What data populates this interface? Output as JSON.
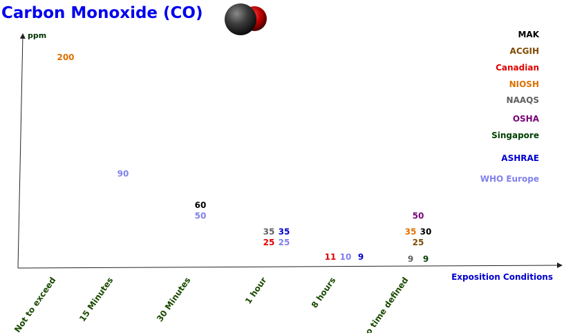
{
  "title": "Carbon Monoxide (CO)",
  "molecule_icon": "carbon-monoxide-molecule-icon",
  "chart_data": {
    "type": "scatter",
    "title": "Carbon Monoxide (CO)",
    "ylabel": "ppm",
    "xlabel": "Exposition Conditions",
    "ylim": [
      0,
      215
    ],
    "categories": [
      "Not to exceed",
      "15 Minutes",
      "30 Minutes",
      "1 hour",
      "8 hours",
      "no time defined"
    ],
    "series": [
      {
        "name": "MAK",
        "color": "#000000",
        "points": [
          {
            "x": "30 Minutes",
            "y": 60
          },
          {
            "x": "no time defined",
            "y": 30
          }
        ]
      },
      {
        "name": "ACGIH",
        "color": "#7f4a00",
        "points": [
          {
            "x": "no time defined",
            "y": 25
          }
        ]
      },
      {
        "name": "Canadian",
        "color": "#e00000",
        "points": [
          {
            "x": "1 hour",
            "y": 25
          },
          {
            "x": "8 hours",
            "y": 11
          }
        ]
      },
      {
        "name": "NIOSH",
        "color": "#e07000",
        "points": [
          {
            "x": "Not to exceed",
            "y": 200
          },
          {
            "x": "no time defined",
            "y": 35
          }
        ]
      },
      {
        "name": "NAAQS",
        "color": "#606060",
        "points": [
          {
            "x": "1 hour",
            "y": 35
          },
          {
            "x": "no time defined",
            "y": 9
          }
        ]
      },
      {
        "name": "OSHA",
        "color": "#770077",
        "points": [
          {
            "x": "no time defined",
            "y": 50
          }
        ]
      },
      {
        "name": "Singapore",
        "color": "#004000",
        "points": [
          {
            "x": "no time defined",
            "y": 9
          }
        ]
      },
      {
        "name": "ASHRAE",
        "color": "#0000cc",
        "points": [
          {
            "x": "1 hour",
            "y": 35
          },
          {
            "x": "8 hours",
            "y": 9
          }
        ]
      },
      {
        "name": "WHO Europe",
        "color": "#8080ee",
        "points": [
          {
            "x": "15 Minutes",
            "y": 90
          },
          {
            "x": "30 Minutes",
            "y": 50
          },
          {
            "x": "1 hour",
            "y": 25
          },
          {
            "x": "8 hours",
            "y": 10
          }
        ]
      }
    ],
    "legend_placement": "right",
    "grid": false
  }
}
